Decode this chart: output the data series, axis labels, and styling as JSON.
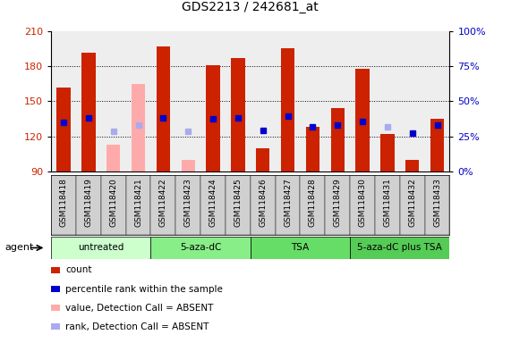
{
  "title": "GDS2213 / 242681_at",
  "samples": [
    "GSM118418",
    "GSM118419",
    "GSM118420",
    "GSM118421",
    "GSM118422",
    "GSM118423",
    "GSM118424",
    "GSM118425",
    "GSM118426",
    "GSM118427",
    "GSM118428",
    "GSM118429",
    "GSM118430",
    "GSM118431",
    "GSM118432",
    "GSM118433"
  ],
  "bar_base": 90,
  "red_values": [
    162,
    191,
    null,
    null,
    197,
    null,
    181,
    187,
    110,
    195,
    128,
    144,
    178,
    122,
    100,
    135
  ],
  "pink_values": [
    null,
    null,
    113,
    165,
    null,
    100,
    null,
    null,
    null,
    null,
    null,
    null,
    null,
    null,
    null,
    null
  ],
  "blue_markers": [
    132,
    136,
    null,
    null,
    136,
    null,
    135,
    136,
    125,
    137,
    128,
    130,
    133,
    null,
    123,
    130
  ],
  "lightblue_markers": [
    null,
    null,
    124,
    130,
    null,
    124,
    null,
    null,
    null,
    null,
    null,
    null,
    null,
    128,
    null,
    null
  ],
  "ylim_left": [
    90,
    210
  ],
  "ylim_right": [
    0,
    100
  ],
  "yticks_left": [
    90,
    120,
    150,
    180,
    210
  ],
  "yticks_right": [
    0,
    25,
    50,
    75,
    100
  ],
  "groups": [
    {
      "label": "untreated",
      "start": 0,
      "end": 4,
      "color": "#ccffcc"
    },
    {
      "label": "5-aza-dC",
      "start": 4,
      "end": 8,
      "color": "#88ee88"
    },
    {
      "label": "TSA",
      "start": 8,
      "end": 12,
      "color": "#66dd66"
    },
    {
      "label": "5-aza-dC plus TSA",
      "start": 12,
      "end": 16,
      "color": "#55cc55"
    }
  ],
  "red_color": "#cc2200",
  "pink_color": "#ffaaaa",
  "blue_color": "#0000cc",
  "lightblue_color": "#aaaaee",
  "bg_color": "#ffffff",
  "plot_bg": "#eeeeee",
  "axis_label_color_left": "#cc2200",
  "axis_label_color_right": "#0000cc",
  "bar_width": 0.55,
  "legend_items": [
    {
      "color": "#cc2200",
      "label": "count"
    },
    {
      "color": "#0000cc",
      "label": "percentile rank within the sample"
    },
    {
      "color": "#ffaaaa",
      "label": "value, Detection Call = ABSENT"
    },
    {
      "color": "#aaaaee",
      "label": "rank, Detection Call = ABSENT"
    }
  ]
}
